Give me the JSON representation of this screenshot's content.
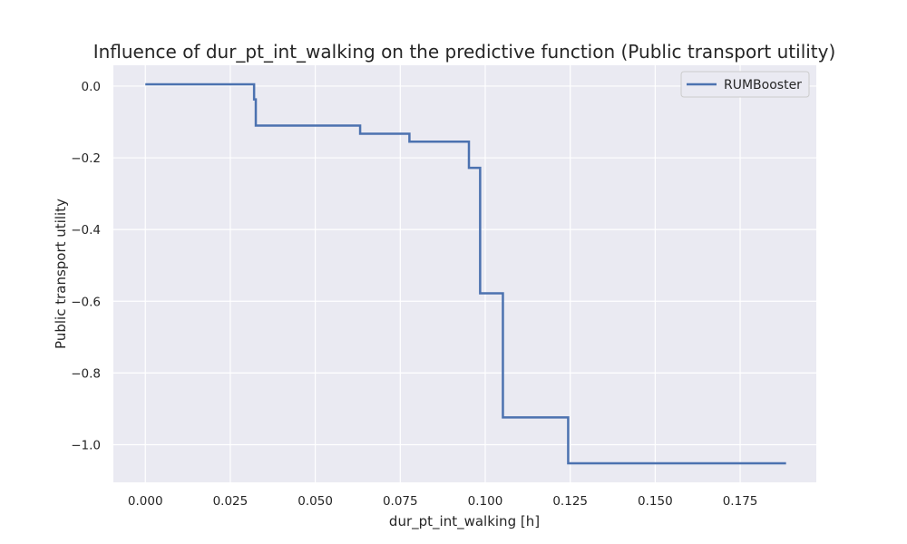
{
  "chart_data": {
    "type": "line",
    "step": true,
    "title": "Influence of dur_pt_int_walking on the predictive function (Public transport utility)",
    "xlabel": "dur_pt_int_walking [h]",
    "ylabel": "Public transport utility",
    "xlim": [
      -0.0094,
      0.1974
    ],
    "ylim": [
      -1.105,
      0.058
    ],
    "x_ticks": [
      0.0,
      0.025,
      0.05,
      0.075,
      0.1,
      0.125,
      0.15,
      0.175
    ],
    "x_tick_labels": [
      "0.000",
      "0.025",
      "0.050",
      "0.075",
      "0.100",
      "0.125",
      "0.150",
      "0.175"
    ],
    "y_ticks": [
      0.0,
      -0.2,
      -0.4,
      -0.6,
      -0.8,
      -1.0
    ],
    "y_tick_labels": [
      "0.0",
      "−0.2",
      "−0.4",
      "−0.6",
      "−0.8",
      "−1.0"
    ],
    "grid": true,
    "legend_position": "top-right",
    "series": [
      {
        "name": "RUMBooster",
        "color": "#4c72b0",
        "x": [
          0.0,
          0.032,
          0.032,
          0.0325,
          0.0325,
          0.0632,
          0.0632,
          0.0777,
          0.0777,
          0.0952,
          0.0952,
          0.0985,
          0.0985,
          0.1052,
          0.1052,
          0.1244,
          0.1244,
          0.1885
        ],
        "y": [
          0.005,
          0.005,
          -0.037,
          -0.037,
          -0.11,
          -0.11,
          -0.133,
          -0.133,
          -0.155,
          -0.155,
          -0.228,
          -0.228,
          -0.578,
          -0.578,
          -0.924,
          -0.924,
          -1.052,
          -1.052
        ]
      }
    ]
  },
  "colors": {
    "plot_background": "#eaeaf2",
    "grid": "#ffffff",
    "line": "#4c72b0"
  }
}
